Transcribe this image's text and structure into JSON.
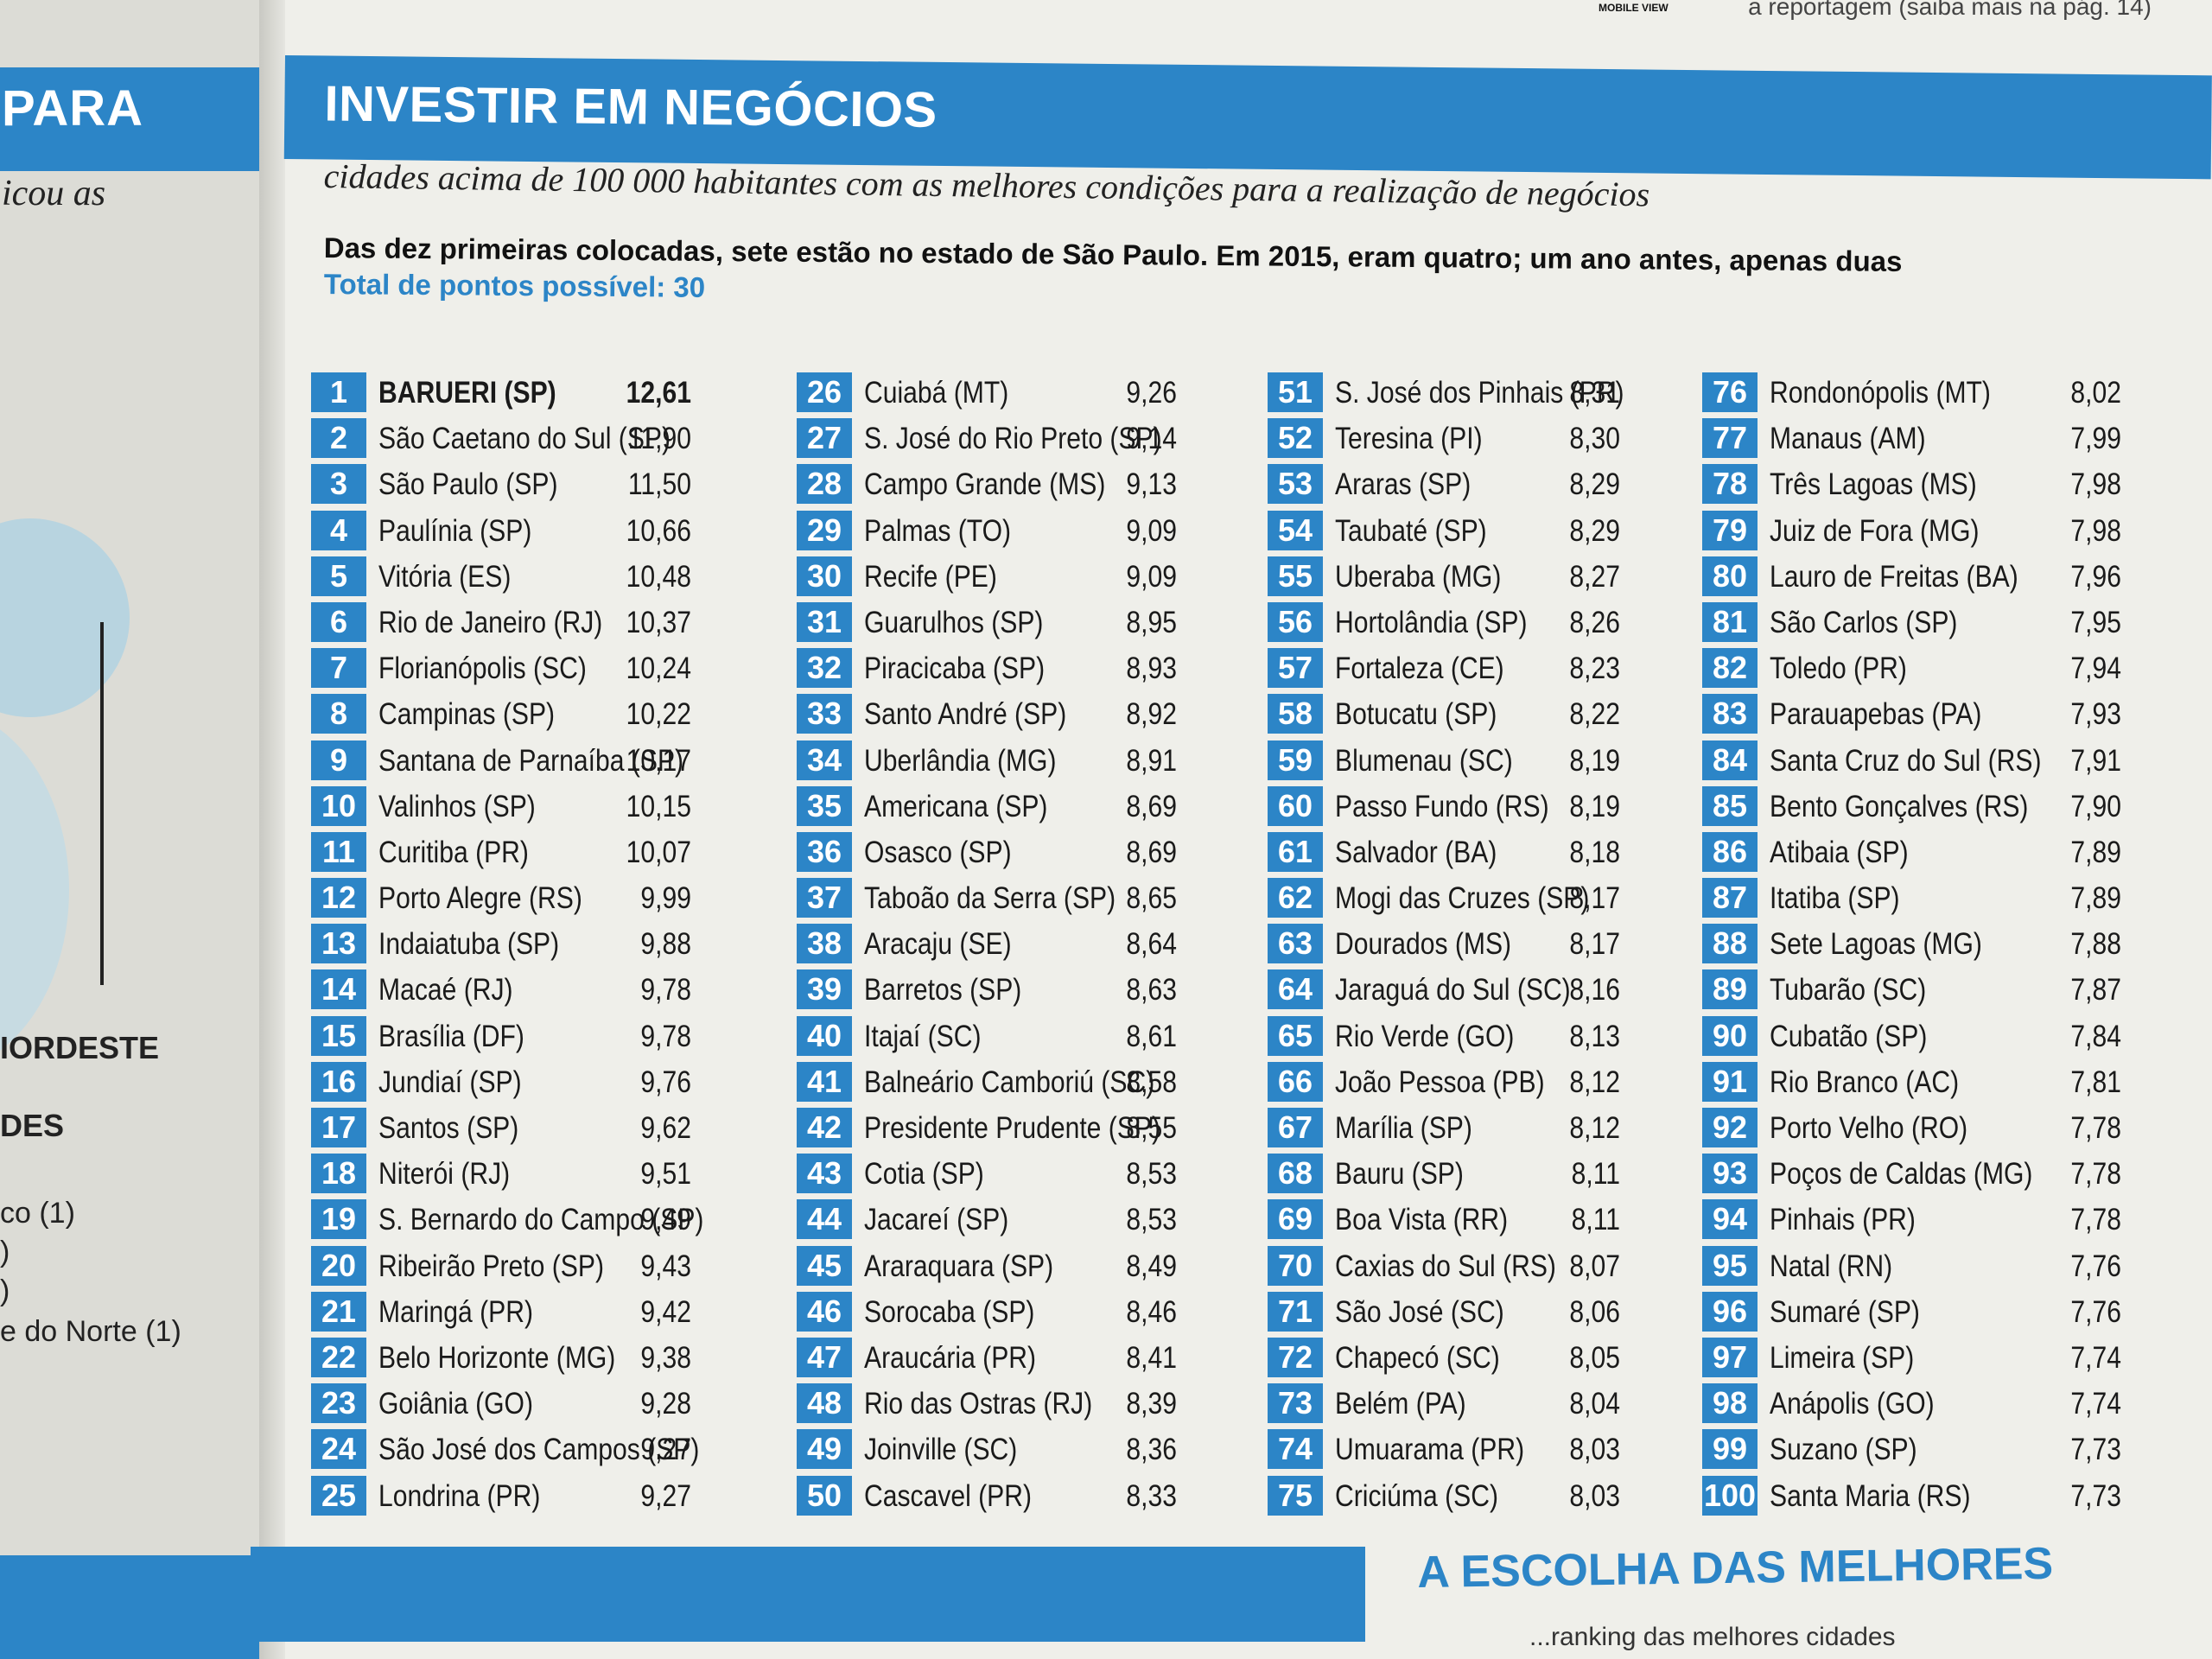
{
  "left_page": {
    "header": "PARA",
    "line1": "icou as",
    "caps1": "IORDESTE",
    "caps2": "DES",
    "item1": "co (1)",
    "item2": ")",
    "item3": ")",
    "item4": "e do Norte (1)"
  },
  "masthead": {
    "icon_label": "MOBILE VIEW",
    "note": "a reportagem (saiba mais na pág. 14)"
  },
  "header": {
    "title": "INVESTIR EM NEGÓCIOS",
    "subtitle": "cidades acima de 100 000 habitantes com as melhores condições para a realização de negócios",
    "lead": "Das dez primeiras colocadas, sete estão no estado de São Paulo. Em 2015, eram quatro; um ano antes, apenas duas",
    "total": "Total de pontos possível: 30"
  },
  "ranking": {
    "col1": [
      {
        "rank": "1",
        "city": "BARUERI (SP)",
        "score": "12,61"
      },
      {
        "rank": "2",
        "city": "São Caetano do Sul (SP)",
        "score": "11,90"
      },
      {
        "rank": "3",
        "city": "São Paulo (SP)",
        "score": "11,50"
      },
      {
        "rank": "4",
        "city": "Paulínia (SP)",
        "score": "10,66"
      },
      {
        "rank": "5",
        "city": "Vitória (ES)",
        "score": "10,48"
      },
      {
        "rank": "6",
        "city": "Rio de Janeiro (RJ)",
        "score": "10,37"
      },
      {
        "rank": "7",
        "city": "Florianópolis (SC)",
        "score": "10,24"
      },
      {
        "rank": "8",
        "city": "Campinas (SP)",
        "score": "10,22"
      },
      {
        "rank": "9",
        "city": "Santana de Parnaíba (SP)",
        "score": "10,17"
      },
      {
        "rank": "10",
        "city": "Valinhos (SP)",
        "score": "10,15"
      },
      {
        "rank": "11",
        "city": "Curitiba (PR)",
        "score": "10,07"
      },
      {
        "rank": "12",
        "city": "Porto Alegre (RS)",
        "score": "9,99"
      },
      {
        "rank": "13",
        "city": "Indaiatuba (SP)",
        "score": "9,88"
      },
      {
        "rank": "14",
        "city": "Macaé (RJ)",
        "score": "9,78"
      },
      {
        "rank": "15",
        "city": "Brasília (DF)",
        "score": "9,78"
      },
      {
        "rank": "16",
        "city": "Jundiaí (SP)",
        "score": "9,76"
      },
      {
        "rank": "17",
        "city": "Santos (SP)",
        "score": "9,62"
      },
      {
        "rank": "18",
        "city": "Niterói (RJ)",
        "score": "9,51"
      },
      {
        "rank": "19",
        "city": "S. Bernardo do Campo (SP)",
        "score": "9,49"
      },
      {
        "rank": "20",
        "city": "Ribeirão Preto (SP)",
        "score": "9,43"
      },
      {
        "rank": "21",
        "city": "Maringá (PR)",
        "score": "9,42"
      },
      {
        "rank": "22",
        "city": "Belo Horizonte (MG)",
        "score": "9,38"
      },
      {
        "rank": "23",
        "city": "Goiânia (GO)",
        "score": "9,28"
      },
      {
        "rank": "24",
        "city": "São José dos Campos (SP)",
        "score": "9,27"
      },
      {
        "rank": "25",
        "city": "Londrina (PR)",
        "score": "9,27"
      }
    ],
    "col2": [
      {
        "rank": "26",
        "city": "Cuiabá (MT)",
        "score": "9,26"
      },
      {
        "rank": "27",
        "city": "S. José do Rio Preto (SP)",
        "score": "9,14"
      },
      {
        "rank": "28",
        "city": "Campo Grande (MS)",
        "score": "9,13"
      },
      {
        "rank": "29",
        "city": "Palmas (TO)",
        "score": "9,09"
      },
      {
        "rank": "30",
        "city": "Recife (PE)",
        "score": "9,09"
      },
      {
        "rank": "31",
        "city": "Guarulhos (SP)",
        "score": "8,95"
      },
      {
        "rank": "32",
        "city": "Piracicaba (SP)",
        "score": "8,93"
      },
      {
        "rank": "33",
        "city": "Santo André (SP)",
        "score": "8,92"
      },
      {
        "rank": "34",
        "city": "Uberlândia (MG)",
        "score": "8,91"
      },
      {
        "rank": "35",
        "city": "Americana (SP)",
        "score": "8,69"
      },
      {
        "rank": "36",
        "city": "Osasco (SP)",
        "score": "8,69"
      },
      {
        "rank": "37",
        "city": "Taboão da Serra (SP)",
        "score": "8,65"
      },
      {
        "rank": "38",
        "city": "Aracaju (SE)",
        "score": "8,64"
      },
      {
        "rank": "39",
        "city": "Barretos (SP)",
        "score": "8,63"
      },
      {
        "rank": "40",
        "city": "Itajaí (SC)",
        "score": "8,61"
      },
      {
        "rank": "41",
        "city": "Balneário Camboriú (SC)",
        "score": "8,58"
      },
      {
        "rank": "42",
        "city": "Presidente Prudente (SP)",
        "score": "8,55"
      },
      {
        "rank": "43",
        "city": "Cotia (SP)",
        "score": "8,53"
      },
      {
        "rank": "44",
        "city": "Jacareí (SP)",
        "score": "8,53"
      },
      {
        "rank": "45",
        "city": "Araraquara (SP)",
        "score": "8,49"
      },
      {
        "rank": "46",
        "city": "Sorocaba (SP)",
        "score": "8,46"
      },
      {
        "rank": "47",
        "city": "Araucária (PR)",
        "score": "8,41"
      },
      {
        "rank": "48",
        "city": "Rio das Ostras (RJ)",
        "score": "8,39"
      },
      {
        "rank": "49",
        "city": "Joinville (SC)",
        "score": "8,36"
      },
      {
        "rank": "50",
        "city": "Cascavel (PR)",
        "score": "8,33"
      }
    ],
    "col3": [
      {
        "rank": "51",
        "city": "S. José dos Pinhais (PR)",
        "score": "8,31"
      },
      {
        "rank": "52",
        "city": "Teresina (PI)",
        "score": "8,30"
      },
      {
        "rank": "53",
        "city": "Araras (SP)",
        "score": "8,29"
      },
      {
        "rank": "54",
        "city": "Taubaté (SP)",
        "score": "8,29"
      },
      {
        "rank": "55",
        "city": "Uberaba (MG)",
        "score": "8,27"
      },
      {
        "rank": "56",
        "city": "Hortolândia (SP)",
        "score": "8,26"
      },
      {
        "rank": "57",
        "city": "Fortaleza (CE)",
        "score": "8,23"
      },
      {
        "rank": "58",
        "city": "Botucatu (SP)",
        "score": "8,22"
      },
      {
        "rank": "59",
        "city": "Blumenau (SC)",
        "score": "8,19"
      },
      {
        "rank": "60",
        "city": "Passo Fundo (RS)",
        "score": "8,19"
      },
      {
        "rank": "61",
        "city": "Salvador (BA)",
        "score": "8,18"
      },
      {
        "rank": "62",
        "city": "Mogi das Cruzes (SP)",
        "score": "8,17"
      },
      {
        "rank": "63",
        "city": "Dourados (MS)",
        "score": "8,17"
      },
      {
        "rank": "64",
        "city": "Jaraguá do Sul (SC)",
        "score": "8,16"
      },
      {
        "rank": "65",
        "city": "Rio Verde (GO)",
        "score": "8,13"
      },
      {
        "rank": "66",
        "city": "João Pessoa (PB)",
        "score": "8,12"
      },
      {
        "rank": "67",
        "city": "Marília (SP)",
        "score": "8,12"
      },
      {
        "rank": "68",
        "city": "Bauru (SP)",
        "score": "8,11"
      },
      {
        "rank": "69",
        "city": "Boa Vista (RR)",
        "score": "8,11"
      },
      {
        "rank": "70",
        "city": "Caxias do Sul (RS)",
        "score": "8,07"
      },
      {
        "rank": "71",
        "city": "São José (SC)",
        "score": "8,06"
      },
      {
        "rank": "72",
        "city": "Chapecó (SC)",
        "score": "8,05"
      },
      {
        "rank": "73",
        "city": "Belém (PA)",
        "score": "8,04"
      },
      {
        "rank": "74",
        "city": "Umuarama (PR)",
        "score": "8,03"
      },
      {
        "rank": "75",
        "city": "Criciúma (SC)",
        "score": "8,03"
      }
    ],
    "col4": [
      {
        "rank": "76",
        "city": "Rondonópolis (MT)",
        "score": "8,02"
      },
      {
        "rank": "77",
        "city": "Manaus (AM)",
        "score": "7,99"
      },
      {
        "rank": "78",
        "city": "Três Lagoas (MS)",
        "score": "7,98"
      },
      {
        "rank": "79",
        "city": "Juiz de Fora (MG)",
        "score": "7,98"
      },
      {
        "rank": "80",
        "city": "Lauro de Freitas (BA)",
        "score": "7,96"
      },
      {
        "rank": "81",
        "city": "São Carlos (SP)",
        "score": "7,95"
      },
      {
        "rank": "82",
        "city": "Toledo (PR)",
        "score": "7,94"
      },
      {
        "rank": "83",
        "city": "Parauapebas (PA)",
        "score": "7,93"
      },
      {
        "rank": "84",
        "city": "Santa Cruz do Sul (RS)",
        "score": "7,91"
      },
      {
        "rank": "85",
        "city": "Bento Gonçalves (RS)",
        "score": "7,90"
      },
      {
        "rank": "86",
        "city": "Atibaia (SP)",
        "score": "7,89"
      },
      {
        "rank": "87",
        "city": "Itatiba (SP)",
        "score": "7,89"
      },
      {
        "rank": "88",
        "city": "Sete Lagoas (MG)",
        "score": "7,88"
      },
      {
        "rank": "89",
        "city": "Tubarão (SC)",
        "score": "7,87"
      },
      {
        "rank": "90",
        "city": "Cubatão (SP)",
        "score": "7,84"
      },
      {
        "rank": "91",
        "city": "Rio Branco (AC)",
        "score": "7,81"
      },
      {
        "rank": "92",
        "city": "Porto Velho (RO)",
        "score": "7,78"
      },
      {
        "rank": "93",
        "city": "Poços de Caldas (MG)",
        "score": "7,78"
      },
      {
        "rank": "94",
        "city": "Pinhais (PR)",
        "score": "7,78"
      },
      {
        "rank": "95",
        "city": "Natal (RN)",
        "score": "7,76"
      },
      {
        "rank": "96",
        "city": "Sumaré (SP)",
        "score": "7,76"
      },
      {
        "rank": "97",
        "city": "Limeira (SP)",
        "score": "7,74"
      },
      {
        "rank": "98",
        "city": "Anápolis (GO)",
        "score": "7,74"
      },
      {
        "rank": "99",
        "city": "Suzano (SP)",
        "score": "7,73"
      },
      {
        "rank": "100",
        "city": "Santa Maria (RS)",
        "score": "7,73"
      }
    ]
  },
  "bottom": {
    "heading": "A ESCOLHA DAS MELHORES",
    "sub": "...ranking das melhores cidades"
  },
  "colors": {
    "accent": "#2c85c7",
    "paper": "#efefea",
    "text": "#1a1a1a"
  }
}
